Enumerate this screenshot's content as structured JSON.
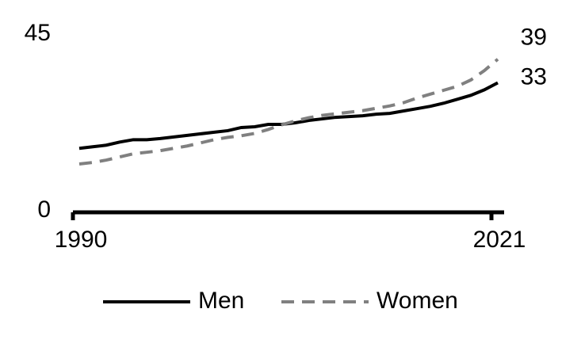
{
  "chart_data": {
    "type": "line",
    "x": [
      1990,
      1991,
      1992,
      1993,
      1994,
      1995,
      1996,
      1997,
      1998,
      1999,
      2000,
      2001,
      2002,
      2003,
      2004,
      2005,
      2006,
      2007,
      2008,
      2009,
      2010,
      2011,
      2012,
      2013,
      2014,
      2015,
      2016,
      2017,
      2018,
      2019,
      2020,
      2021
    ],
    "xlim": [
      1990,
      2021
    ],
    "xticks": [
      1990,
      2021
    ],
    "ylim": [
      0,
      45
    ],
    "yticks": [
      0,
      45
    ],
    "series": [
      {
        "name": "Men",
        "color": "#000000",
        "dash": "solid",
        "values": [
          16.3,
          16.7,
          17.1,
          17.9,
          18.5,
          18.5,
          18.8,
          19.2,
          19.6,
          20.0,
          20.4,
          20.8,
          21.6,
          21.8,
          22.4,
          22.4,
          22.8,
          23.4,
          23.8,
          24.2,
          24.4,
          24.6,
          25.0,
          25.2,
          25.8,
          26.4,
          27.0,
          27.8,
          28.8,
          29.8,
          31.2,
          33
        ]
      },
      {
        "name": "Women",
        "color": "#808080",
        "dash": "dashed",
        "values": [
          12.3,
          12.7,
          13.3,
          14.1,
          14.9,
          15.3,
          15.7,
          16.3,
          16.9,
          17.7,
          18.5,
          19.1,
          19.5,
          20.1,
          21.1,
          22.3,
          23.3,
          24.1,
          24.7,
          25.1,
          25.5,
          25.9,
          26.5,
          27.1,
          27.9,
          29.1,
          30.1,
          31.1,
          32.1,
          33.7,
          36.1,
          39
        ]
      }
    ]
  }
}
